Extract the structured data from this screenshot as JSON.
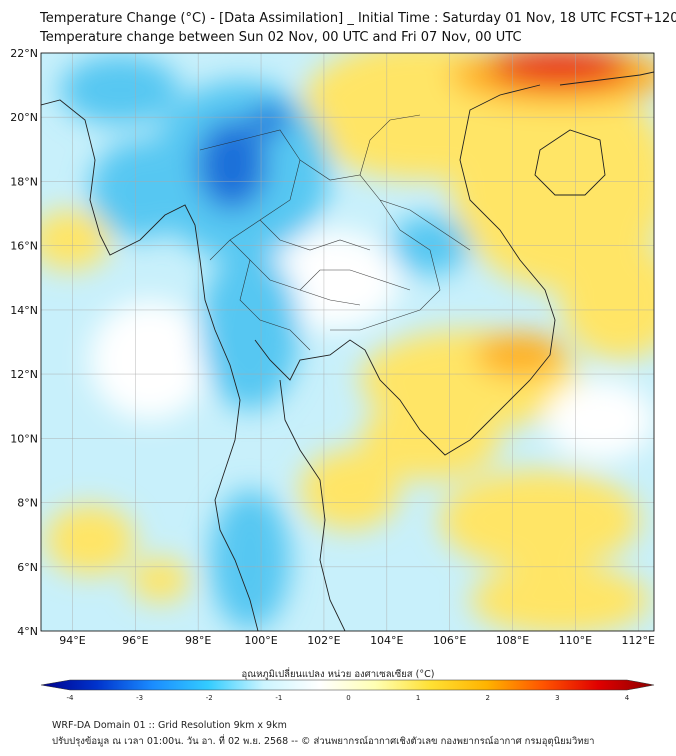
{
  "title_line1": "Temperature Change (°C) - [Data Assimilation] _ Initial Time : Saturday 01 Nov, 18 UTC FCST+120",
  "title_line2": "Temperature change between Sun 02 Nov, 00 UTC and Fri 07 Nov, 00 UTC",
  "lat_labels": [
    "22°N",
    "20°N",
    "18°N",
    "16°N",
    "14°N",
    "12°N",
    "10°N",
    "8°N",
    "6°N",
    "4°N"
  ],
  "lon_labels": [
    "94°E",
    "96°E",
    "98°E",
    "100°E",
    "102°E",
    "104°E",
    "106°E",
    "108°E",
    "110°E",
    "112°E"
  ],
  "colorbar": {
    "label": "อุณหภูมิเปลี่ยนแปลง หน่วย องศาเซลเซียส (°C)",
    "ticks": [
      "-4",
      "-3",
      "-2",
      "-1",
      "0",
      "1",
      "2",
      "3",
      "4"
    ],
    "stops": [
      "#00008b",
      "#0033cc",
      "#1a8cff",
      "#33ccff",
      "#ccf5ff",
      "#ffffff",
      "#ffffb3",
      "#ffe033",
      "#ffb300",
      "#ff5500",
      "#e00000",
      "#8b0000"
    ]
  },
  "field_colors": {
    "background": "#c8f0fb",
    "cold": "#57c7f2",
    "very_cold": "#1f6fd9",
    "warm": "#ffe566",
    "hot": "#ffb020",
    "very_hot": "#e81c1c",
    "neutral": "#ffffff"
  },
  "footer_line1": "WRF-DA Domain 01 :: Grid Resolution 9km x 9km",
  "footer_line2": "ปรับปรุงข้อมูล ณ เวลา 01:00น. วัน อา. ที่ 02 พ.ย. 2568 -- © ส่วนพยากรณ์อากาศเชิงตัวเลข กองพยากรณ์อากาศ กรมอุตุนิยมวิทยา"
}
